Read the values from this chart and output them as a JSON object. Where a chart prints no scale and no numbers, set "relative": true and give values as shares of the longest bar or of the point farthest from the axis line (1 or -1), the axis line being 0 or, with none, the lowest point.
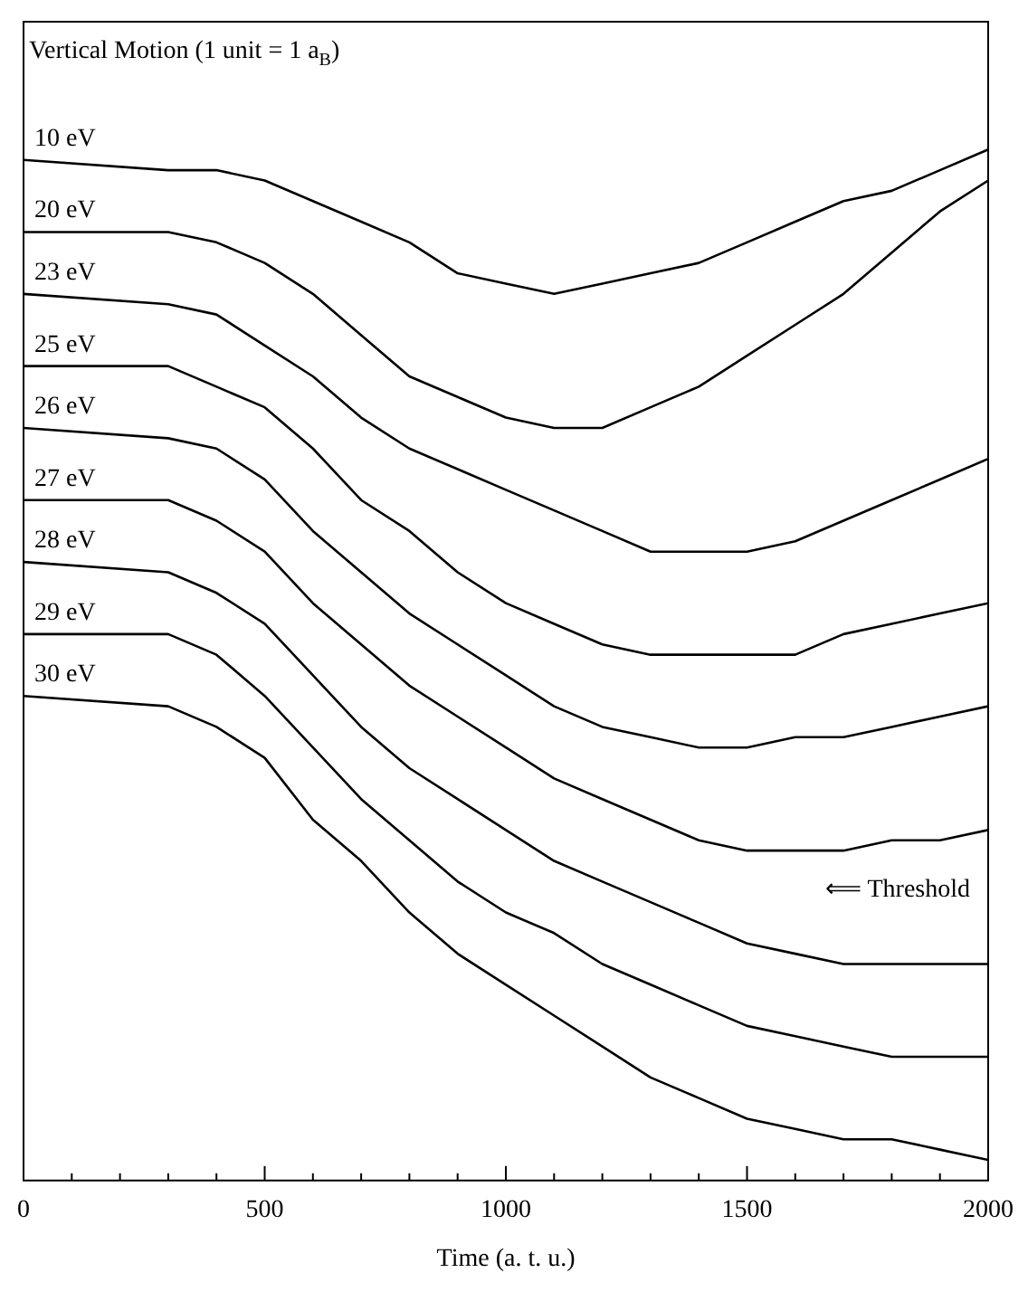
{
  "chart_data": {
    "type": "line",
    "title": "Vertical Motion (1 unit = 1 a$_{B}$)",
    "xlabel": "Time (a. t. u.)",
    "relative": true,
    "legend": false,
    "marker": "none",
    "line_style": "solid",
    "grid": false,
    "annotations": [
      "⟸ Threshold"
    ],
    "x": [
      0,
      300,
      400,
      500,
      600,
      700,
      800,
      900,
      1000,
      1100,
      1200,
      1300,
      1400,
      1500,
      1600,
      1700,
      1800,
      1900,
      2000
    ],
    "xlim": [
      0,
      2000
    ],
    "xticks": [
      0,
      {
        "value": 100,
        "label": null
      },
      {
        "value": 200,
        "label": null
      },
      {
        "value": 300,
        "label": null
      },
      {
        "value": 400,
        "label": null
      },
      500,
      {
        "value": 600,
        "label": null
      },
      {
        "value": 700,
        "label": null
      },
      {
        "value": 800,
        "label": null
      },
      {
        "value": 900,
        "label": null
      },
      1000,
      {
        "value": 1100,
        "label": null
      },
      {
        "value": 1200,
        "label": null
      },
      {
        "value": 1300,
        "label": null
      },
      {
        "value": 1400,
        "label": null
      },
      1500,
      {
        "value": 1600,
        "label": null
      },
      {
        "value": 1700,
        "label": null
      },
      {
        "value": 1800,
        "label": null
      },
      {
        "value": 1900,
        "label": null
      },
      2000
    ],
    "series": [
      {
        "name": "10 eV",
        "color": "#000000",
        "values": [
          0.99,
          0.98,
          0.98,
          0.97,
          0.95,
          0.93,
          0.91,
          0.88,
          0.87,
          0.86,
          0.87,
          0.88,
          0.89,
          0.91,
          0.93,
          0.95,
          0.96,
          0.98,
          1
        ]
      },
      {
        "name": "20 eV",
        "color": "#000000",
        "values": [
          0.92,
          0.92,
          0.91,
          0.89,
          0.86,
          0.82,
          0.78,
          0.76,
          0.74,
          0.73,
          0.73,
          0.75,
          0.77,
          0.8,
          0.83,
          0.86,
          0.9,
          0.94,
          0.97
        ]
      },
      {
        "name": "23 eV",
        "color": "#000000",
        "values": [
          0.86,
          0.85,
          0.84,
          0.81,
          0.78,
          0.74,
          0.71,
          0.69,
          0.67,
          0.65,
          0.63,
          0.61,
          0.61,
          0.61,
          0.62,
          0.64,
          0.66,
          0.68,
          0.7
        ]
      },
      {
        "name": "25 eV",
        "color": "#000000",
        "values": [
          0.79,
          0.79,
          0.77,
          0.75,
          0.71,
          0.66,
          0.63,
          0.59,
          0.56,
          0.54,
          0.52,
          0.51,
          0.51,
          0.51,
          0.51,
          0.53,
          0.54,
          0.55,
          0.56
        ]
      },
      {
        "name": "26 eV",
        "color": "#000000",
        "values": [
          0.73,
          0.72,
          0.71,
          0.68,
          0.63,
          0.59,
          0.55,
          0.52,
          0.49,
          0.46,
          0.44,
          0.43,
          0.42,
          0.42,
          0.43,
          0.43,
          0.44,
          0.45,
          0.46
        ]
      },
      {
        "name": "27 eV",
        "color": "#000000",
        "values": [
          0.66,
          0.66,
          0.64,
          0.61,
          0.56,
          0.52,
          0.48,
          0.45,
          0.42,
          0.39,
          0.37,
          0.35,
          0.33,
          0.32,
          0.32,
          0.32,
          0.33,
          0.33,
          0.34
        ]
      },
      {
        "name": "28 eV",
        "color": "#000000",
        "values": [
          0.6,
          0.59,
          0.57,
          0.54,
          0.49,
          0.44,
          0.4,
          0.37,
          0.34,
          0.31,
          0.29,
          0.27,
          0.25,
          0.23,
          0.22,
          0.21,
          0.21,
          0.21,
          0.21
        ]
      },
      {
        "name": "29 eV",
        "color": "#000000",
        "values": [
          0.53,
          0.53,
          0.51,
          0.47,
          0.42,
          0.37,
          0.33,
          0.29,
          0.26,
          0.24,
          0.21,
          0.19,
          0.17,
          0.15,
          0.14,
          0.13,
          0.12,
          0.12,
          0.12
        ]
      },
      {
        "name": "30 eV",
        "color": "#000000",
        "values": [
          0.47,
          0.46,
          0.44,
          0.41,
          0.35,
          0.31,
          0.26,
          0.22,
          0.19,
          0.16,
          0.13,
          0.1,
          0.08,
          0.06,
          0.05,
          0.04,
          0.04,
          0.03,
          0.02
        ]
      }
    ]
  }
}
